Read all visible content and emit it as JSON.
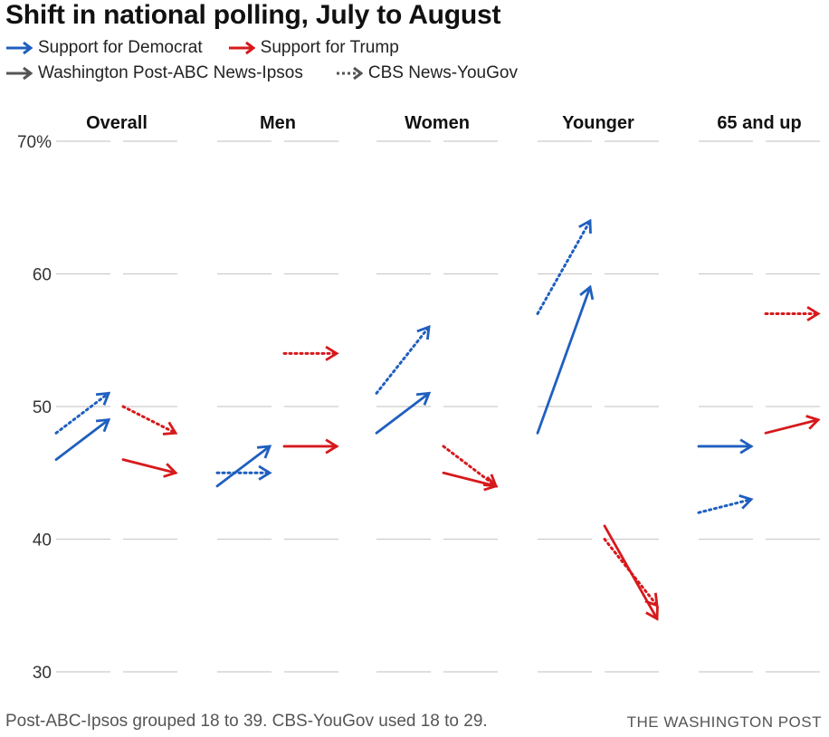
{
  "title": "Shift in national polling, July to August",
  "legend": [
    {
      "label": "Support for Democrat",
      "color": "#1f5fbf",
      "style": "solid"
    },
    {
      "label": "Support for Trump",
      "color": "#d7191c",
      "style": "solid"
    },
    {
      "label": "Washington Post-ABC News-Ipsos",
      "color": "#555555",
      "style": "solid"
    },
    {
      "label": "CBS News-YouGov",
      "color": "#555555",
      "style": "dotted"
    }
  ],
  "colors": {
    "democrat": "#1f5fbf",
    "trump": "#d7191c",
    "grid": "#cccccc"
  },
  "chart_data": {
    "type": "line",
    "title": "Shift in national polling, July to August",
    "ylim": [
      30,
      70
    ],
    "yticks": [
      "70%",
      "60",
      "50",
      "40",
      "30"
    ],
    "grid": true,
    "legend_position": "top-left",
    "x": [
      "July",
      "August"
    ],
    "panels": [
      {
        "name": "Overall",
        "series": [
          {
            "party": "Democrat",
            "poll": "Post-ABC-Ipsos",
            "values": [
              46,
              49
            ]
          },
          {
            "party": "Democrat",
            "poll": "CBS-YouGov",
            "values": [
              48,
              51
            ]
          },
          {
            "party": "Trump",
            "poll": "Post-ABC-Ipsos",
            "values": [
              46,
              45
            ]
          },
          {
            "party": "Trump",
            "poll": "CBS-YouGov",
            "values": [
              50,
              48
            ]
          }
        ]
      },
      {
        "name": "Men",
        "series": [
          {
            "party": "Democrat",
            "poll": "Post-ABC-Ipsos",
            "values": [
              44,
              47
            ]
          },
          {
            "party": "Democrat",
            "poll": "CBS-YouGov",
            "values": [
              45,
              45
            ]
          },
          {
            "party": "Trump",
            "poll": "Post-ABC-Ipsos",
            "values": [
              47,
              47
            ]
          },
          {
            "party": "Trump",
            "poll": "CBS-YouGov",
            "values": [
              54,
              54
            ]
          }
        ]
      },
      {
        "name": "Women",
        "series": [
          {
            "party": "Democrat",
            "poll": "Post-ABC-Ipsos",
            "values": [
              48,
              51
            ]
          },
          {
            "party": "Democrat",
            "poll": "CBS-YouGov",
            "values": [
              51,
              56
            ]
          },
          {
            "party": "Trump",
            "poll": "Post-ABC-Ipsos",
            "values": [
              45,
              44
            ]
          },
          {
            "party": "Trump",
            "poll": "CBS-YouGov",
            "values": [
              47,
              44
            ]
          }
        ]
      },
      {
        "name": "Younger",
        "series": [
          {
            "party": "Democrat",
            "poll": "Post-ABC-Ipsos",
            "values": [
              48,
              59
            ]
          },
          {
            "party": "Democrat",
            "poll": "CBS-YouGov",
            "values": [
              57,
              64
            ]
          },
          {
            "party": "Trump",
            "poll": "Post-ABC-Ipsos",
            "values": [
              41,
              34
            ]
          },
          {
            "party": "Trump",
            "poll": "CBS-YouGov",
            "values": [
              40,
              35
            ]
          }
        ]
      },
      {
        "name": "65 and up",
        "series": [
          {
            "party": "Democrat",
            "poll": "Post-ABC-Ipsos",
            "values": [
              47,
              47
            ]
          },
          {
            "party": "Democrat",
            "poll": "CBS-YouGov",
            "values": [
              42,
              43
            ]
          },
          {
            "party": "Trump",
            "poll": "Post-ABC-Ipsos",
            "values": [
              48,
              49
            ]
          },
          {
            "party": "Trump",
            "poll": "CBS-YouGov",
            "values": [
              57,
              57
            ]
          }
        ]
      }
    ]
  },
  "source": "Post-ABC-Ipsos grouped 18 to 39. CBS-YouGov used 18 to 29.",
  "credit": "THE WASHINGTON POST"
}
